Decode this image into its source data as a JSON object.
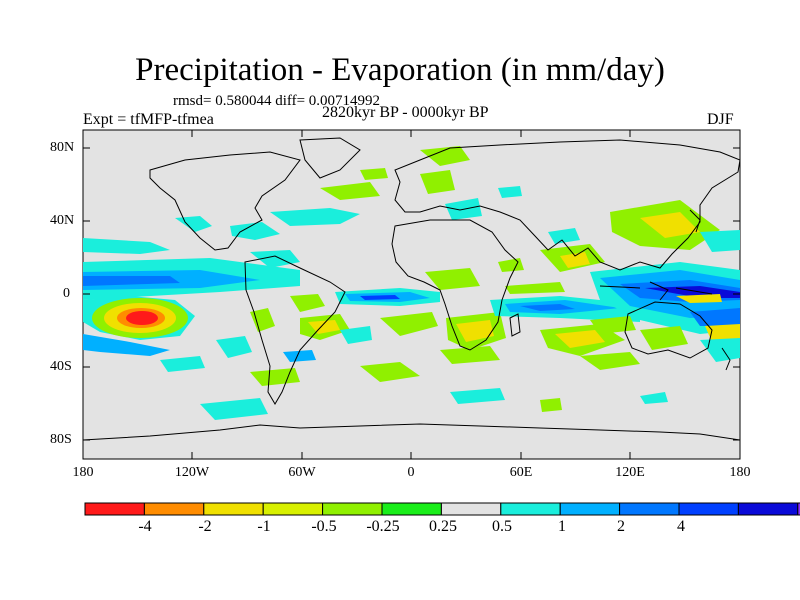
{
  "title": "Precipitation - Evaporation (in mm/day)",
  "stats_line": "rmsd= 0.580044 diff= 0.00714992",
  "period": "2820kyr BP - 0000kyr BP",
  "experiment": "Expt = tfMFP-tfmea",
  "season": "DJF",
  "y_axis_labels": [
    "80N",
    "40N",
    "0",
    "40S",
    "80S"
  ],
  "x_axis_labels": [
    "180",
    "120W",
    "60W",
    "0",
    "60E",
    "120E",
    "180"
  ],
  "colorbar": {
    "colors": [
      "#ff1a1a",
      "#ff8c00",
      "#f0e000",
      "#d8f000",
      "#90f000",
      "#1aee1a",
      "#e3e3e3",
      "#1aeedc",
      "#00b0ff",
      "#0077ff",
      "#0040ff",
      "#0a0ad8",
      "#8a2bff"
    ],
    "labels": [
      "-4",
      "-2",
      "-1",
      "-0.5",
      "-0.25",
      "0.25",
      "0.5",
      "1",
      "2",
      "4"
    ]
  },
  "colors": {
    "map_background": "#e3e3e3",
    "coastline": "#000000"
  }
}
